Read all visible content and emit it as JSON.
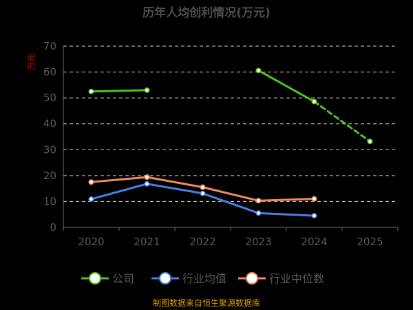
{
  "chart_data": {
    "type": "line",
    "title": "历年人均创利情况(万元)",
    "ylabel": "万元",
    "xlabel": "",
    "categories": [
      "2020",
      "2021",
      "2022",
      "2023",
      "2024",
      "2025"
    ],
    "ylim": [
      0,
      70
    ],
    "yticks": [
      0,
      10,
      20,
      30,
      40,
      50,
      60,
      70
    ],
    "grid": true,
    "legend_position": "bottom",
    "series": [
      {
        "name": "公司",
        "color": "#52c41a",
        "values": [
          52.5,
          53.0,
          null,
          60.6,
          48.6,
          33.2
        ],
        "segments": [
          {
            "from": 0,
            "to": 1,
            "style": "solid"
          },
          {
            "from": 3,
            "to": 4,
            "style": "solid"
          },
          {
            "from": 4,
            "to": 5,
            "style": "dashed"
          }
        ]
      },
      {
        "name": "行业均值",
        "color": "#4a7fe6",
        "values": [
          10.9,
          16.8,
          13.1,
          5.5,
          4.5,
          null
        ]
      },
      {
        "name": "行业中位数",
        "color": "#f08a5d",
        "values": [
          17.5,
          19.4,
          15.5,
          10.3,
          11.0,
          null
        ]
      }
    ],
    "source": "制图数据来自恒生聚源数据库"
  }
}
